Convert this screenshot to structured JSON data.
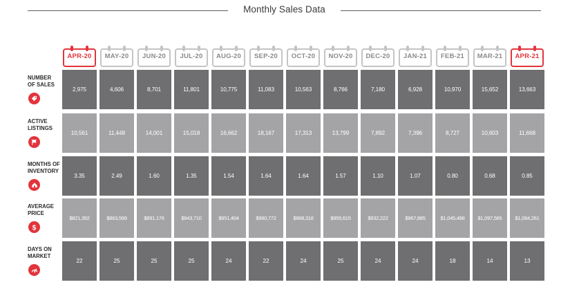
{
  "title": "Monthly Sales Data",
  "colors": {
    "accent": "#e2343c",
    "calendar": "#c4c4c4",
    "dark_row": "#6f6f71",
    "light_row": "#a4a4a6"
  },
  "months": [
    "APR-20",
    "MAY-20",
    "JUN-20",
    "JUL-20",
    "AUG-20",
    "SEP-20",
    "OCT-20",
    "NOV-20",
    "DEC-20",
    "JAN-21",
    "FEB-21",
    "MAR-21",
    "APR-21"
  ],
  "highlighted_months": [
    "APR-20",
    "APR-21"
  ],
  "rows": [
    {
      "label": [
        "NUMBER",
        "OF SALES"
      ],
      "icon": "tag-icon",
      "values": [
        "2,975",
        "4,606",
        "8,701",
        "11,801",
        "10,775",
        "11,083",
        "10,563",
        "8,766",
        "7,180",
        "6,928",
        "10,970",
        "15,652",
        "13,663"
      ]
    },
    {
      "label": [
        "ACTIVE",
        "LISTINGS"
      ],
      "icon": "flag-icon",
      "values": [
        "10,561",
        "11,448",
        "14,001",
        "15,018",
        "16,662",
        "18,167",
        "17,313",
        "13,799",
        "7,892",
        "7,396",
        "8,727",
        "10,603",
        "11,668"
      ]
    },
    {
      "label": [
        "MONTHS OF",
        "INVENTORY"
      ],
      "icon": "house-icon",
      "values": [
        "3.35",
        "2.49",
        "1.60",
        "1.35",
        "1.54",
        "1.64",
        "1.64",
        "1.57",
        "1.10",
        "1.07",
        "0.80",
        "0.68",
        "0.85"
      ]
    },
    {
      "label": [
        "AVERAGE",
        "PRICE"
      ],
      "icon": "dollar-icon",
      "values": [
        "$821,392",
        "$863,599",
        "$891,176",
        "$943,710",
        "$951,404",
        "$960,772",
        "$968,318",
        "$955,615",
        "$932,222",
        "$967,885",
        "$1,045,488",
        "$1,097,565",
        "$1,064,261"
      ]
    },
    {
      "label": [
        "DAYS ON",
        "MARKET"
      ],
      "icon": "speedometer-icon",
      "values": [
        "22",
        "25",
        "25",
        "25",
        "24",
        "22",
        "24",
        "25",
        "24",
        "24",
        "18",
        "14",
        "13"
      ]
    }
  ],
  "chart_data": {
    "type": "table",
    "title": "Monthly Sales Data",
    "columns": [
      "APR-20",
      "MAY-20",
      "JUN-20",
      "JUL-20",
      "AUG-20",
      "SEP-20",
      "OCT-20",
      "NOV-20",
      "DEC-20",
      "JAN-21",
      "FEB-21",
      "MAR-21",
      "APR-21"
    ],
    "series": [
      {
        "name": "NUMBER OF SALES",
        "values": [
          2975,
          4606,
          8701,
          11801,
          10775,
          11083,
          10563,
          8766,
          7180,
          6928,
          10970,
          15652,
          13663
        ]
      },
      {
        "name": "ACTIVE LISTINGS",
        "values": [
          10561,
          11448,
          14001,
          15018,
          16662,
          18167,
          17313,
          13799,
          7892,
          7396,
          8727,
          10603,
          11668
        ]
      },
      {
        "name": "MONTHS OF INVENTORY",
        "values": [
          3.35,
          2.49,
          1.6,
          1.35,
          1.54,
          1.64,
          1.64,
          1.57,
          1.1,
          1.07,
          0.8,
          0.68,
          0.85
        ]
      },
      {
        "name": "AVERAGE PRICE",
        "values": [
          821392,
          863599,
          891176,
          943710,
          951404,
          960772,
          968318,
          955615,
          932222,
          967885,
          1045488,
          1097565,
          1064261
        ]
      },
      {
        "name": "DAYS ON MARKET",
        "values": [
          22,
          25,
          25,
          25,
          24,
          22,
          24,
          25,
          24,
          24,
          18,
          14,
          13
        ]
      }
    ]
  }
}
